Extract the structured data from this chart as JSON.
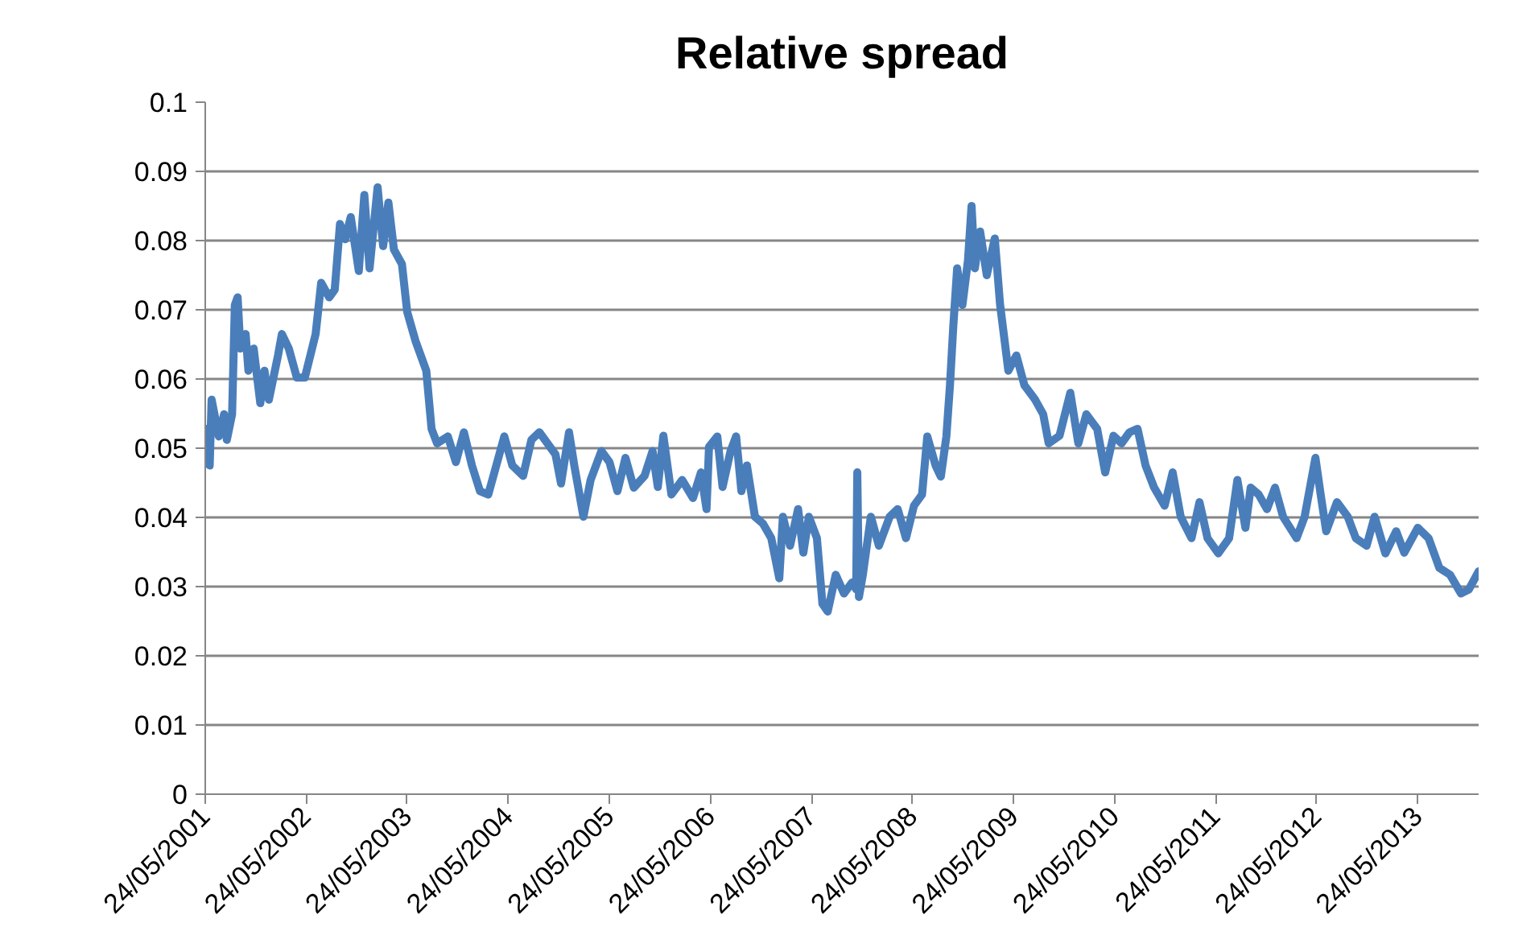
{
  "chart_data": {
    "type": "line",
    "title": "Relative spread",
    "grid": "y",
    "marker": "none",
    "line_style": "solid",
    "xlim": [
      "2001-05-24",
      "2013-12-30"
    ],
    "xticks": [
      {
        "value": "2001-05-24",
        "label": "24/05/2001"
      },
      {
        "value": "2002-05-24",
        "label": "24/05/2002"
      },
      {
        "value": "2003-05-24",
        "label": "24/05/2003"
      },
      {
        "value": "2004-05-24",
        "label": "24/05/2004"
      },
      {
        "value": "2005-05-24",
        "label": "24/05/2005"
      },
      {
        "value": "2006-05-24",
        "label": "24/05/2006"
      },
      {
        "value": "2007-05-24",
        "label": "24/05/2007"
      },
      {
        "value": "2008-05-24",
        "label": "24/05/2008"
      },
      {
        "value": "2009-05-24",
        "label": "24/05/2009"
      },
      {
        "value": "2010-05-24",
        "label": "24/05/2010"
      },
      {
        "value": "2011-05-24",
        "label": "24/05/2011"
      },
      {
        "value": "2012-05-24",
        "label": "24/05/2012"
      },
      {
        "value": "2013-05-24",
        "label": "24/05/2013"
      }
    ],
    "ylim": [
      0,
      0.1
    ],
    "yticks": [
      0,
      0.01,
      0.02,
      0.03,
      0.04,
      0.05,
      0.06,
      0.07,
      0.08,
      0.09,
      0.1
    ],
    "x": [
      "2001-05-28",
      "2001-06-09",
      "2001-06-16",
      "2001-07-12",
      "2001-07-31",
      "2001-08-10",
      "2001-08-29",
      "2001-09-08",
      "2001-09-18",
      "2001-09-28",
      "2001-10-17",
      "2001-10-27",
      "2001-11-15",
      "2001-12-09",
      "2001-12-24",
      "2002-01-09",
      "2002-02-11",
      "2002-02-25",
      "2002-03-22",
      "2002-04-20",
      "2002-05-19",
      "2002-06-27",
      "2002-07-17",
      "2002-08-15",
      "2002-09-04",
      "2002-09-23",
      "2002-10-12",
      "2002-11-01",
      "2002-11-30",
      "2002-12-20",
      "2003-01-08",
      "2003-02-06",
      "2003-02-26",
      "2003-03-17",
      "2003-04-06",
      "2003-05-05",
      "2003-05-24",
      "2003-06-23",
      "2003-08-01",
      "2003-08-20",
      "2003-09-09",
      "2003-10-18",
      "2003-11-16",
      "2003-12-15",
      "2004-01-13",
      "2004-02-11",
      "2004-03-12",
      "2004-04-10",
      "2004-05-09",
      "2004-06-07",
      "2004-07-16",
      "2004-08-15",
      "2004-09-13",
      "2004-10-12",
      "2004-11-10",
      "2004-11-30",
      "2004-12-29",
      "2005-01-17",
      "2005-02-19",
      "2005-03-17",
      "2005-04-25",
      "2005-05-24",
      "2005-06-22",
      "2005-07-21",
      "2005-08-20",
      "2005-09-28",
      "2005-10-27",
      "2005-11-15",
      "2005-12-05",
      "2006-01-03",
      "2006-02-11",
      "2006-03-22",
      "2006-04-20",
      "2006-05-10",
      "2006-05-19",
      "2006-06-18",
      "2006-07-07",
      "2006-08-05",
      "2006-08-25",
      "2006-09-13",
      "2006-10-03",
      "2006-11-01",
      "2006-11-30",
      "2006-12-30",
      "2007-01-28",
      "2007-02-10",
      "2007-03-08",
      "2007-04-06",
      "2007-04-25",
      "2007-05-15",
      "2007-06-13",
      "2007-07-03",
      "2007-07-22",
      "2007-08-20",
      "2007-09-19",
      "2007-10-18",
      "2007-11-02",
      "2007-11-06",
      "2007-11-12",
      "2007-11-26",
      "2007-12-25",
      "2008-01-23",
      "2008-03-02",
      "2008-03-31",
      "2008-04-30",
      "2008-05-29",
      "2008-06-27",
      "2008-07-16",
      "2008-08-15",
      "2008-09-03",
      "2008-09-23",
      "2008-10-06",
      "2008-10-18",
      "2008-11-01",
      "2008-11-20",
      "2008-12-10",
      "2008-12-23",
      "2009-01-04",
      "2009-01-23",
      "2009-02-16",
      "2009-03-17",
      "2009-04-05",
      "2009-05-05",
      "2009-06-03",
      "2009-07-02",
      "2009-08-10",
      "2009-09-08",
      "2009-09-28",
      "2009-11-06",
      "2009-12-15",
      "2010-01-13",
      "2010-02-11",
      "2010-03-22",
      "2010-04-20",
      "2010-05-20",
      "2010-06-18",
      "2010-07-17",
      "2010-08-15",
      "2010-09-13",
      "2010-10-13",
      "2010-11-21",
      "2010-12-20",
      "2011-01-18",
      "2011-02-26",
      "2011-03-27",
      "2011-04-25",
      "2011-06-03",
      "2011-07-12",
      "2011-08-11",
      "2011-09-09",
      "2011-09-28",
      "2011-10-27",
      "2011-11-26",
      "2011-12-25",
      "2012-01-23",
      "2012-03-12",
      "2012-04-10",
      "2012-05-19",
      "2012-06-07",
      "2012-06-27",
      "2012-08-05",
      "2012-09-13",
      "2012-10-12",
      "2012-11-20",
      "2012-12-19",
      "2013-01-27",
      "2013-03-07",
      "2013-04-05",
      "2013-05-24",
      "2013-07-02",
      "2013-08-10",
      "2013-09-18",
      "2013-10-27",
      "2013-11-25",
      "2013-12-30"
    ],
    "series": [
      {
        "color": "#4a7ebb",
        "values": [
          0.0528,
          0.0475,
          0.057,
          0.0517,
          0.0549,
          0.0512,
          0.0549,
          0.0707,
          0.0718,
          0.0644,
          0.0665,
          0.0612,
          0.0644,
          0.0565,
          0.0612,
          0.057,
          0.0634,
          0.0665,
          0.0644,
          0.0602,
          0.0602,
          0.0665,
          0.0739,
          0.0718,
          0.0729,
          0.0824,
          0.0802,
          0.0834,
          0.0756,
          0.0866,
          0.076,
          0.0877,
          0.0792,
          0.0855,
          0.0787,
          0.0766,
          0.0697,
          0.0655,
          0.0612,
          0.0528,
          0.0507,
          0.0517,
          0.048,
          0.0523,
          0.0475,
          0.0438,
          0.0433,
          0.0475,
          0.0517,
          0.0475,
          0.046,
          0.0512,
          0.0523,
          0.0507,
          0.0491,
          0.0449,
          0.0523,
          0.0475,
          0.0401,
          0.0454,
          0.0496,
          0.048,
          0.0438,
          0.0486,
          0.0443,
          0.046,
          0.0496,
          0.0444,
          0.0518,
          0.0433,
          0.0454,
          0.0428,
          0.0465,
          0.0412,
          0.0502,
          0.0517,
          0.0444,
          0.0496,
          0.0517,
          0.0438,
          0.0475,
          0.0401,
          0.0391,
          0.037,
          0.0312,
          0.0401,
          0.0359,
          0.0412,
          0.0349,
          0.0401,
          0.037,
          0.0275,
          0.0264,
          0.0317,
          0.029,
          0.0306,
          0.0296,
          0.0465,
          0.0285,
          0.0317,
          0.0401,
          0.0359,
          0.0401,
          0.0412,
          0.037,
          0.0417,
          0.0433,
          0.0517,
          0.0475,
          0.0459,
          0.0517,
          0.0591,
          0.0676,
          0.076,
          0.0707,
          0.0771,
          0.085,
          0.076,
          0.0813,
          0.075,
          0.0803,
          0.0708,
          0.0612,
          0.0634,
          0.0591,
          0.057,
          0.0549,
          0.0507,
          0.0518,
          0.058,
          0.0507,
          0.0549,
          0.0528,
          0.0465,
          0.0518,
          0.0507,
          0.0523,
          0.0528,
          0.0475,
          0.0444,
          0.0417,
          0.0465,
          0.0401,
          0.037,
          0.0422,
          0.037,
          0.0348,
          0.037,
          0.0454,
          0.0385,
          0.0443,
          0.0433,
          0.0412,
          0.0443,
          0.0401,
          0.037,
          0.0401,
          0.0486,
          0.0433,
          0.038,
          0.0422,
          0.0401,
          0.037,
          0.0359,
          0.0401,
          0.0348,
          0.038,
          0.0349,
          0.0385,
          0.037,
          0.0327,
          0.0317,
          0.029,
          0.0296,
          0.0322
        ]
      }
    ]
  }
}
